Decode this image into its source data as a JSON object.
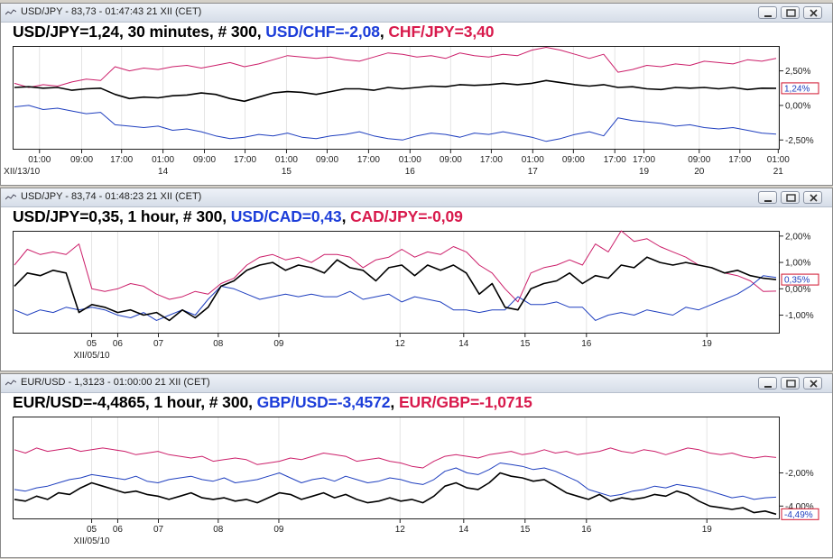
{
  "colors": {
    "black": "#000000",
    "blue": "#1f3fbf",
    "magenta": "#cc1f6a",
    "header_blue": "#1c3dd9",
    "header_red": "#d81a4c",
    "tag_border": "#d0152f"
  },
  "windows": [
    {
      "title": "USD/JPY - 83,73 - 01:47:43  21 XII (CET)",
      "header": [
        {
          "text": "USD/JPY=1,24, 30 minutes, # 300, ",
          "color": "#000000"
        },
        {
          "text": "USD/CHF=-2,08",
          "color": "#1c3dd9"
        },
        {
          "text": ", ",
          "color": "#000000"
        },
        {
          "text": "CHF/JPY=3,40",
          "color": "#d81a4c"
        }
      ],
      "chart_data": {
        "type": "line",
        "ylim": [
          -3.2,
          4.3
        ],
        "y_ticks": [
          2.5,
          0.0,
          -2.5
        ],
        "y_tick_labels": [
          "2,50%",
          "0,00%",
          "-2,50%"
        ],
        "current_value_tag": {
          "value": 1.24,
          "label": "1,24%"
        },
        "x_tick_labels": [
          "01:00",
          "09:00",
          "17:00",
          "01:00",
          "09:00",
          "17:00",
          "01:00",
          "09:00",
          "17:00",
          "01:00",
          "09:00",
          "17:00",
          "01:00",
          "09:00",
          "17:00",
          "17:00",
          "09:00",
          "17:00",
          "01:00"
        ],
        "x_tick_positions": [
          0.035,
          0.09,
          0.142,
          0.196,
          0.25,
          0.303,
          0.357,
          0.41,
          0.464,
          0.518,
          0.571,
          0.624,
          0.678,
          0.731,
          0.785,
          0.823,
          0.895,
          0.948,
          0.998
        ],
        "date_labels": [
          "XII/13/10",
          "14",
          "15",
          "16",
          "17",
          "19",
          "20",
          "21"
        ],
        "date_label_positions": [
          0.012,
          0.196,
          0.357,
          0.518,
          0.678,
          0.823,
          0.895,
          0.998
        ],
        "series": [
          {
            "name": "USD/JPY",
            "color": "#000000",
            "width": 1.6,
            "values": [
              1.3,
              1.35,
              1.25,
              1.3,
              1.1,
              1.2,
              1.25,
              0.8,
              0.5,
              0.6,
              0.55,
              0.7,
              0.75,
              0.9,
              0.8,
              0.5,
              0.3,
              0.6,
              0.9,
              1.0,
              0.95,
              0.8,
              1.0,
              1.2,
              1.2,
              1.1,
              1.3,
              1.2,
              1.3,
              1.4,
              1.35,
              1.5,
              1.45,
              1.5,
              1.6,
              1.5,
              1.6,
              1.8,
              1.65,
              1.5,
              1.4,
              1.5,
              1.3,
              1.35,
              1.2,
              1.15,
              1.3,
              1.25,
              1.3,
              1.2,
              1.3,
              1.15,
              1.25,
              1.24
            ]
          },
          {
            "name": "USD/CHF",
            "color": "#1f3fbf",
            "width": 1.0,
            "values": [
              -0.1,
              0.0,
              -0.3,
              -0.2,
              -0.4,
              -0.6,
              -0.5,
              -1.4,
              -1.5,
              -1.6,
              -1.5,
              -1.8,
              -1.7,
              -1.9,
              -2.2,
              -2.4,
              -2.3,
              -2.1,
              -2.2,
              -2.0,
              -2.3,
              -2.4,
              -2.2,
              -2.1,
              -1.9,
              -2.2,
              -2.4,
              -2.5,
              -2.2,
              -2.0,
              -2.1,
              -2.3,
              -2.0,
              -2.1,
              -1.9,
              -2.1,
              -2.3,
              -2.6,
              -2.4,
              -2.1,
              -1.9,
              -2.2,
              -0.9,
              -1.1,
              -1.2,
              -1.3,
              -1.5,
              -1.4,
              -1.6,
              -1.7,
              -1.6,
              -1.8,
              -2.0,
              -2.08
            ]
          },
          {
            "name": "CHF/JPY",
            "color": "#cc1f6a",
            "width": 1.0,
            "values": [
              1.6,
              1.3,
              1.5,
              1.4,
              1.7,
              1.9,
              1.8,
              2.8,
              2.5,
              2.7,
              2.6,
              2.8,
              2.9,
              2.7,
              2.9,
              3.1,
              2.8,
              3.0,
              3.3,
              3.6,
              3.5,
              3.4,
              3.5,
              3.3,
              3.2,
              3.5,
              3.8,
              3.7,
              3.5,
              3.6,
              3.4,
              3.8,
              3.6,
              3.5,
              3.7,
              3.6,
              4.0,
              4.2,
              4.0,
              3.7,
              3.4,
              3.7,
              2.4,
              2.6,
              2.9,
              2.8,
              3.0,
              2.9,
              3.2,
              3.1,
              3.0,
              3.3,
              3.2,
              3.4
            ]
          }
        ]
      }
    },
    {
      "title": "USD/JPY - 83,74 - 01:48:23  21 XII (CET)",
      "header": [
        {
          "text": "USD/JPY=0,35, 1 hour, # 300, ",
          "color": "#000000"
        },
        {
          "text": "USD/CAD=0,43",
          "color": "#1c3dd9"
        },
        {
          "text": ", ",
          "color": "#000000"
        },
        {
          "text": "CAD/JPY=-0,09",
          "color": "#d81a4c"
        }
      ],
      "chart_data": {
        "type": "line",
        "ylim": [
          -1.7,
          2.2
        ],
        "y_ticks": [
          2.0,
          1.0,
          0.0,
          -1.0
        ],
        "y_tick_labels": [
          "2,00%",
          "1,00%",
          "0,00%",
          "-1,00%"
        ],
        "current_value_tag": {
          "value": 0.35,
          "label": "0,35%"
        },
        "x_tick_labels": [
          "05",
          "06",
          "07",
          "08",
          "09",
          "12",
          "14",
          "15",
          "16",
          "19"
        ],
        "x_tick_positions": [
          0.103,
          0.137,
          0.19,
          0.268,
          0.347,
          0.505,
          0.588,
          0.668,
          0.748,
          0.905
        ],
        "date_labels": [
          "XII/05/10"
        ],
        "date_label_positions": [
          0.103
        ],
        "series": [
          {
            "name": "USD/JPY",
            "color": "#000000",
            "width": 1.6,
            "values": [
              0.1,
              0.6,
              0.5,
              0.7,
              0.6,
              -0.9,
              -0.6,
              -0.7,
              -0.9,
              -0.8,
              -1.0,
              -0.9,
              -1.2,
              -0.8,
              -1.1,
              -0.7,
              0.1,
              0.3,
              0.7,
              0.9,
              1.0,
              0.7,
              0.9,
              0.8,
              0.6,
              1.1,
              0.8,
              0.7,
              0.3,
              0.8,
              0.9,
              0.5,
              0.9,
              0.7,
              0.9,
              0.6,
              -0.2,
              0.2,
              -0.7,
              -0.8,
              0.0,
              0.2,
              0.3,
              0.6,
              0.2,
              0.5,
              0.4,
              0.9,
              0.8,
              1.2,
              1.0,
              0.9,
              1.0,
              0.9,
              0.8,
              0.6,
              0.7,
              0.5,
              0.4,
              0.35
            ]
          },
          {
            "name": "USD/CAD",
            "color": "#1f3fbf",
            "width": 1.0,
            "values": [
              -0.8,
              -1.0,
              -0.8,
              -0.9,
              -0.7,
              -0.8,
              -0.7,
              -0.8,
              -1.0,
              -1.1,
              -0.9,
              -1.2,
              -1.0,
              -0.8,
              -1.0,
              -0.4,
              0.1,
              0.0,
              -0.2,
              -0.4,
              -0.3,
              -0.2,
              -0.3,
              -0.2,
              -0.3,
              -0.3,
              -0.1,
              -0.4,
              -0.3,
              -0.2,
              -0.5,
              -0.3,
              -0.4,
              -0.5,
              -0.8,
              -0.8,
              -0.9,
              -0.8,
              -0.8,
              -0.3,
              -0.6,
              -0.6,
              -0.5,
              -0.7,
              -0.7,
              -1.2,
              -1.0,
              -0.9,
              -1.0,
              -0.8,
              -0.9,
              -1.0,
              -0.7,
              -0.8,
              -0.6,
              -0.4,
              -0.2,
              0.1,
              0.5,
              0.43
            ]
          },
          {
            "name": "CAD/JPY",
            "color": "#cc1f6a",
            "width": 1.0,
            "values": [
              0.9,
              1.5,
              1.3,
              1.4,
              1.3,
              1.7,
              0.0,
              -0.1,
              0.0,
              0.2,
              0.1,
              -0.2,
              -0.4,
              -0.3,
              -0.1,
              -0.2,
              0.2,
              0.4,
              0.9,
              1.2,
              1.3,
              1.1,
              1.2,
              1.0,
              1.3,
              1.3,
              1.2,
              0.8,
              1.1,
              1.2,
              1.5,
              1.2,
              1.4,
              1.3,
              1.6,
              1.4,
              0.9,
              0.6,
              0.0,
              -0.5,
              0.6,
              0.8,
              0.9,
              1.1,
              0.9,
              1.7,
              1.4,
              2.2,
              1.8,
              1.9,
              1.6,
              1.4,
              1.2,
              0.9,
              0.8,
              0.6,
              0.5,
              0.3,
              -0.1,
              -0.09
            ]
          }
        ]
      }
    },
    {
      "title": "EUR/USD - 1,3123 - 01:00:00  21 XII (CET)",
      "header": [
        {
          "text": "EUR/USD=-4,4865, 1 hour, # 300, ",
          "color": "#000000"
        },
        {
          "text": "GBP/USD=-3,4572",
          "color": "#1c3dd9"
        },
        {
          "text": ", ",
          "color": "#000000"
        },
        {
          "text": "EUR/GBP=-1,0715",
          "color": "#d81a4c"
        }
      ],
      "chart_data": {
        "type": "line",
        "ylim": [
          -4.8,
          1.4
        ],
        "y_ticks": [
          -2.0,
          -4.0
        ],
        "y_tick_labels": [
          "-2,00%",
          "-4,00%"
        ],
        "current_value_tag": {
          "value": -4.49,
          "label": "-4,49%"
        },
        "x_tick_labels": [
          "05",
          "06",
          "07",
          "08",
          "09",
          "12",
          "14",
          "15",
          "16",
          "19"
        ],
        "x_tick_positions": [
          0.103,
          0.137,
          0.19,
          0.268,
          0.347,
          0.505,
          0.588,
          0.668,
          0.748,
          0.905
        ],
        "date_labels": [
          "XII/05/10"
        ],
        "date_label_positions": [
          0.103
        ],
        "series": [
          {
            "name": "EUR/USD",
            "color": "#000000",
            "width": 1.6,
            "values": [
              -3.6,
              -3.7,
              -3.4,
              -3.6,
              -3.2,
              -3.3,
              -2.9,
              -2.6,
              -2.8,
              -3.0,
              -3.2,
              -3.1,
              -3.3,
              -3.4,
              -3.6,
              -3.4,
              -3.2,
              -3.5,
              -3.6,
              -3.5,
              -3.7,
              -3.6,
              -3.8,
              -3.5,
              -3.2,
              -3.3,
              -3.6,
              -3.4,
              -3.2,
              -3.5,
              -3.3,
              -3.6,
              -3.8,
              -3.7,
              -3.5,
              -3.7,
              -3.6,
              -3.8,
              -3.4,
              -2.8,
              -2.6,
              -2.9,
              -3.0,
              -2.6,
              -2.0,
              -2.2,
              -2.3,
              -2.5,
              -2.4,
              -2.8,
              -3.2,
              -3.4,
              -3.6,
              -3.3,
              -3.7,
              -3.5,
              -3.6,
              -3.5,
              -3.3,
              -3.4,
              -3.1,
              -3.3,
              -3.7,
              -4.0,
              -4.1,
              -4.2,
              -4.1,
              -4.4,
              -4.3,
              -4.49
            ]
          },
          {
            "name": "GBP/USD",
            "color": "#1f3fbf",
            "width": 1.0,
            "values": [
              -3.0,
              -3.1,
              -2.9,
              -2.8,
              -2.6,
              -2.4,
              -2.3,
              -2.1,
              -2.2,
              -2.3,
              -2.4,
              -2.2,
              -2.5,
              -2.6,
              -2.4,
              -2.3,
              -2.2,
              -2.4,
              -2.5,
              -2.3,
              -2.6,
              -2.5,
              -2.4,
              -2.2,
              -2.0,
              -2.3,
              -2.6,
              -2.4,
              -2.3,
              -2.5,
              -2.2,
              -2.4,
              -2.6,
              -2.5,
              -2.3,
              -2.4,
              -2.6,
              -2.7,
              -2.4,
              -1.9,
              -1.7,
              -2.0,
              -2.1,
              -1.8,
              -1.4,
              -1.5,
              -1.6,
              -1.8,
              -1.7,
              -1.9,
              -2.2,
              -2.5,
              -3.0,
              -3.2,
              -3.4,
              -3.3,
              -3.1,
              -3.0,
              -2.8,
              -2.9,
              -2.7,
              -2.8,
              -2.9,
              -3.1,
              -3.3,
              -3.5,
              -3.4,
              -3.6,
              -3.5,
              -3.46
            ]
          },
          {
            "name": "EUR/GBP",
            "color": "#cc1f6a",
            "width": 1.0,
            "values": [
              -0.6,
              -0.8,
              -0.5,
              -0.7,
              -0.6,
              -0.5,
              -0.7,
              -0.6,
              -0.5,
              -0.6,
              -0.7,
              -0.9,
              -0.8,
              -0.7,
              -0.9,
              -1.0,
              -1.1,
              -1.0,
              -1.3,
              -1.2,
              -1.1,
              -1.2,
              -1.5,
              -1.4,
              -1.3,
              -1.1,
              -1.2,
              -1.0,
              -0.8,
              -0.9,
              -1.0,
              -1.3,
              -1.2,
              -1.1,
              -1.3,
              -1.4,
              -1.6,
              -1.7,
              -1.3,
              -1.0,
              -0.9,
              -1.0,
              -1.1,
              -0.9,
              -0.8,
              -0.7,
              -0.9,
              -0.8,
              -0.6,
              -0.8,
              -0.7,
              -0.9,
              -0.8,
              -0.7,
              -0.5,
              -0.7,
              -0.8,
              -0.6,
              -0.7,
              -0.9,
              -0.7,
              -0.5,
              -0.6,
              -0.8,
              -0.9,
              -0.8,
              -1.0,
              -1.1,
              -1.0,
              -1.07
            ]
          }
        ]
      }
    }
  ]
}
